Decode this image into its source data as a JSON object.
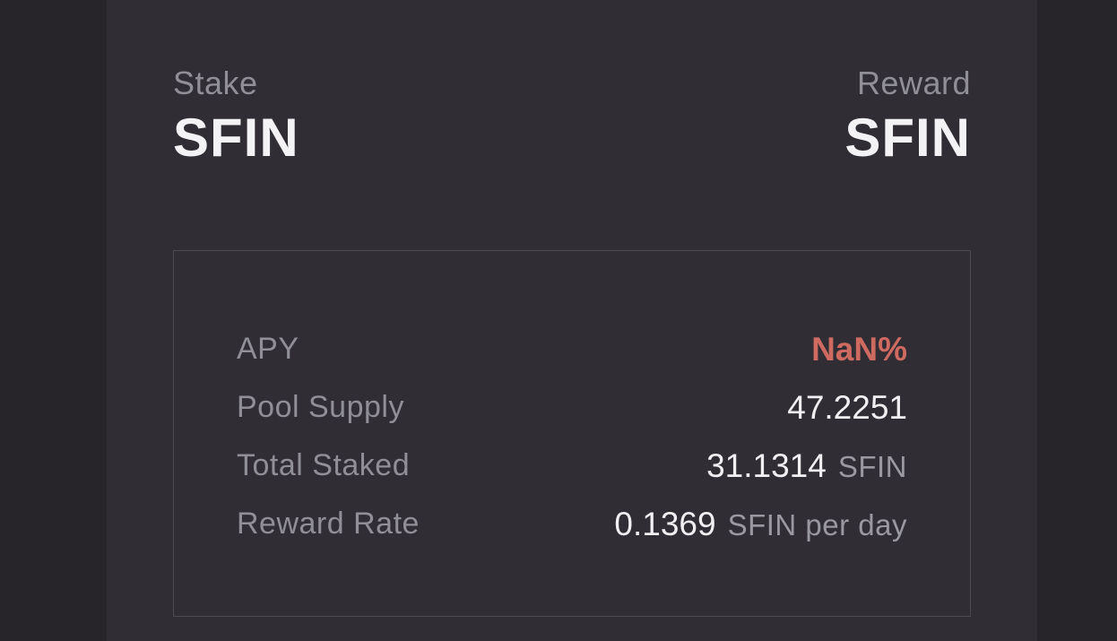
{
  "theme": {
    "outer_bg": "#272529",
    "panel_bg": "#302E34",
    "box_border": "#4D4B52",
    "label_gray": "#908E96",
    "value_white": "#F0EFF1",
    "unit_gray": "#9A98A0",
    "accent_red": "#CF6A60"
  },
  "header": {
    "stake": {
      "label": "Stake",
      "token": "SFIN"
    },
    "reward": {
      "label": "Reward",
      "token": "SFIN"
    }
  },
  "stats": {
    "rows": [
      {
        "label": "APY",
        "value": "NaN%",
        "unit": ""
      },
      {
        "label": "Pool Supply",
        "value": "47.2251",
        "unit": ""
      },
      {
        "label": "Total Staked",
        "value": "31.1314",
        "unit": "SFIN"
      },
      {
        "label": "Reward Rate",
        "value": "0.1369",
        "unit": "SFIN per day"
      }
    ]
  }
}
